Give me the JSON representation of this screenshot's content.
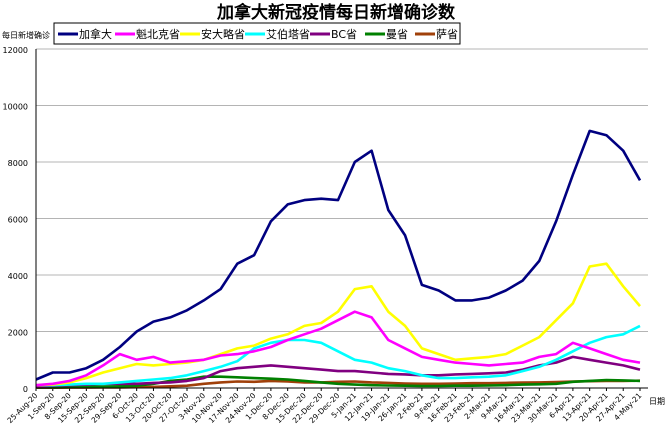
{
  "chart_data": {
    "type": "line",
    "title": "加拿大新冠疫情每日新增确诊数",
    "ylabel": "每日新增确诊",
    "xlabel": "日期",
    "ylim": [
      0,
      12000
    ],
    "yticks": [
      0,
      2000,
      4000,
      6000,
      8000,
      10000,
      12000
    ],
    "grid": true,
    "legend_position": "top",
    "categories": [
      "25-Aug-20",
      "1-Sep-20",
      "8-Sep-20",
      "15-Sep-20",
      "22-Sep-20",
      "29-Sep-20",
      "6-Oct-20",
      "13-Oct-20",
      "20-Oct-20",
      "27-Oct-20",
      "3-Nov-20",
      "10-Nov-20",
      "17-Nov-20",
      "24-Nov-20",
      "1-Dec-20",
      "8-Dec-20",
      "15-Dec-20",
      "22-Dec-20",
      "29-Dec-20",
      "5-Jan-21",
      "12-Jan-21",
      "19-Jan-21",
      "26-Jan-21",
      "2-Feb-21",
      "9-Feb-21",
      "16-Feb-21",
      "23-Feb-21",
      "2-Mar-21",
      "9-Mar-21",
      "16-Mar-21",
      "23-Mar-21",
      "30-Mar-21",
      "6-Apr-21",
      "13-Apr-21",
      "20-Apr-21",
      "27-Apr-21",
      "4-May-21"
    ],
    "series": [
      {
        "name": "加拿大",
        "color": "#000080",
        "values": [
          300,
          550,
          550,
          700,
          1000,
          1450,
          2000,
          2350,
          2500,
          2750,
          3100,
          3500,
          4400,
          4700,
          5900,
          6500,
          6650,
          6700,
          6650,
          8000,
          8400,
          6300,
          5400,
          3650,
          3450,
          3100,
          3100,
          3200,
          3450,
          3800,
          4500,
          5900,
          7550,
          9100,
          8950,
          8400,
          7350
        ]
      },
      {
        "name": "魁北克省",
        "color": "#FF00FF",
        "values": [
          100,
          150,
          250,
          450,
          800,
          1200,
          1000,
          1100,
          900,
          950,
          1000,
          1150,
          1200,
          1300,
          1450,
          1700,
          1900,
          2100,
          2400,
          2700,
          2500,
          1700,
          1400,
          1100,
          1000,
          900,
          850,
          800,
          850,
          900,
          1100,
          1200,
          1600,
          1400,
          1200,
          1000,
          900
        ]
      },
      {
        "name": "安大略省",
        "color": "#FFFF00",
        "values": [
          100,
          120,
          200,
          350,
          550,
          700,
          850,
          800,
          850,
          900,
          1000,
          1200,
          1400,
          1500,
          1750,
          1900,
          2200,
          2300,
          2700,
          3500,
          3600,
          2700,
          2200,
          1400,
          1200,
          1000,
          1050,
          1100,
          1200,
          1500,
          1800,
          2400,
          3000,
          4300,
          4400,
          3600,
          2900
        ]
      },
      {
        "name": "艾伯塔省",
        "color": "#00FFFF",
        "values": [
          100,
          100,
          120,
          150,
          150,
          200,
          250,
          300,
          350,
          450,
          600,
          750,
          950,
          1400,
          1600,
          1700,
          1700,
          1600,
          1300,
          1000,
          900,
          700,
          600,
          450,
          350,
          350,
          380,
          400,
          450,
          600,
          750,
          1000,
          1300,
          1600,
          1800,
          1900,
          2200
        ]
      },
      {
        "name": "BC省",
        "color": "#800080",
        "values": [
          50,
          80,
          100,
          120,
          150,
          150,
          150,
          180,
          200,
          250,
          350,
          600,
          700,
          750,
          800,
          750,
          700,
          650,
          600,
          600,
          550,
          500,
          480,
          450,
          450,
          480,
          500,
          520,
          550,
          650,
          800,
          900,
          1100,
          1000,
          900,
          800,
          650
        ]
      },
      {
        "name": "曼省",
        "color": "#008000",
        "values": [
          20,
          20,
          30,
          40,
          50,
          60,
          80,
          150,
          250,
          300,
          400,
          400,
          380,
          350,
          330,
          300,
          250,
          200,
          150,
          120,
          100,
          90,
          80,
          70,
          70,
          80,
          80,
          90,
          100,
          120,
          130,
          150,
          220,
          250,
          280,
          270,
          250
        ]
      },
      {
        "name": "萨省",
        "color": "#A0400A",
        "values": [
          10,
          10,
          15,
          15,
          20,
          20,
          30,
          40,
          60,
          80,
          150,
          200,
          230,
          220,
          250,
          230,
          200,
          200,
          220,
          230,
          200,
          180,
          160,
          150,
          150,
          160,
          170,
          170,
          180,
          190,
          200,
          210,
          230,
          240,
          250,
          250,
          260
        ]
      }
    ]
  }
}
